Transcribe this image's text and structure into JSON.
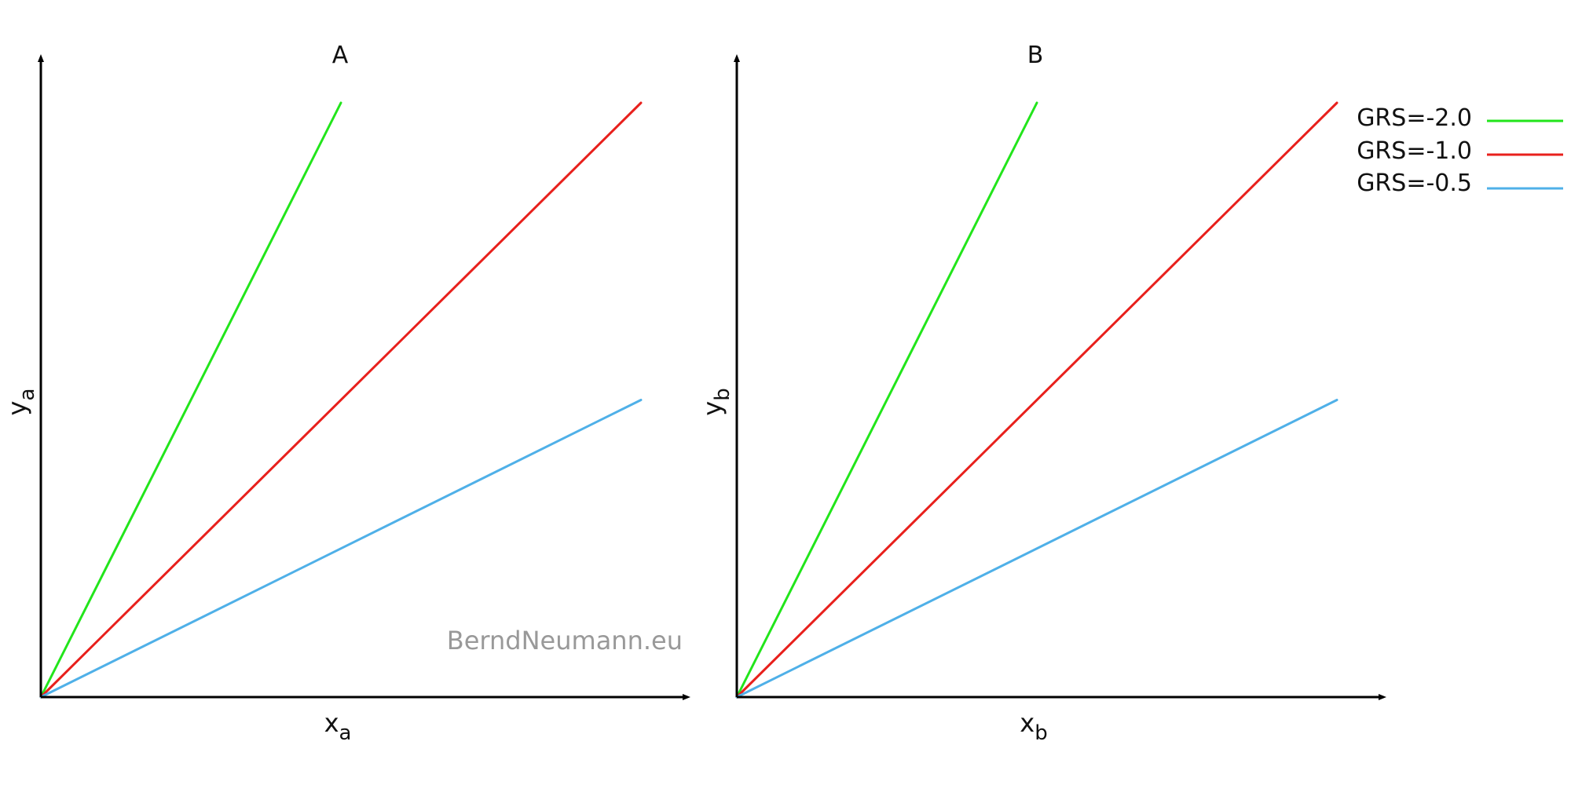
{
  "watermark": "BerndNeumann.eu",
  "legend": {
    "position": "top-right",
    "entries": [
      {
        "label": "GRS=-2.0",
        "color": "#22e51b"
      },
      {
        "label": "GRS=-1.0",
        "color": "#e8201c"
      },
      {
        "label": "GRS=-0.5",
        "color": "#4fb0e8"
      }
    ]
  },
  "chart_data": [
    {
      "type": "line",
      "title": "A",
      "xlabel": {
        "base": "x",
        "sub": "a"
      },
      "ylabel": {
        "base": "y",
        "sub": "a"
      },
      "xlim": [
        0,
        1
      ],
      "ylim": [
        0,
        1
      ],
      "grid": false,
      "series": [
        {
          "name": "GRS=-2.0",
          "color": "#22e51b",
          "x": [
            0,
            0.5
          ],
          "y": [
            0,
            1.0
          ]
        },
        {
          "name": "GRS=-1.0",
          "color": "#e8201c",
          "x": [
            0,
            1.0
          ],
          "y": [
            0,
            1.0
          ]
        },
        {
          "name": "GRS=-0.5",
          "color": "#4fb0e8",
          "x": [
            0,
            1.0
          ],
          "y": [
            0,
            0.5
          ]
        }
      ]
    },
    {
      "type": "line",
      "title": "B",
      "xlabel": {
        "base": "x",
        "sub": "b"
      },
      "ylabel": {
        "base": "y",
        "sub": "b"
      },
      "xlim": [
        0,
        1
      ],
      "ylim": [
        0,
        1
      ],
      "grid": false,
      "series": [
        {
          "name": "GRS=-2.0",
          "color": "#22e51b",
          "x": [
            0,
            0.5
          ],
          "y": [
            0,
            1.0
          ]
        },
        {
          "name": "GRS=-1.0",
          "color": "#e8201c",
          "x": [
            0,
            1.0
          ],
          "y": [
            0,
            1.0
          ]
        },
        {
          "name": "GRS=-0.5",
          "color": "#4fb0e8",
          "x": [
            0,
            1.0
          ],
          "y": [
            0,
            0.5
          ]
        }
      ]
    }
  ]
}
